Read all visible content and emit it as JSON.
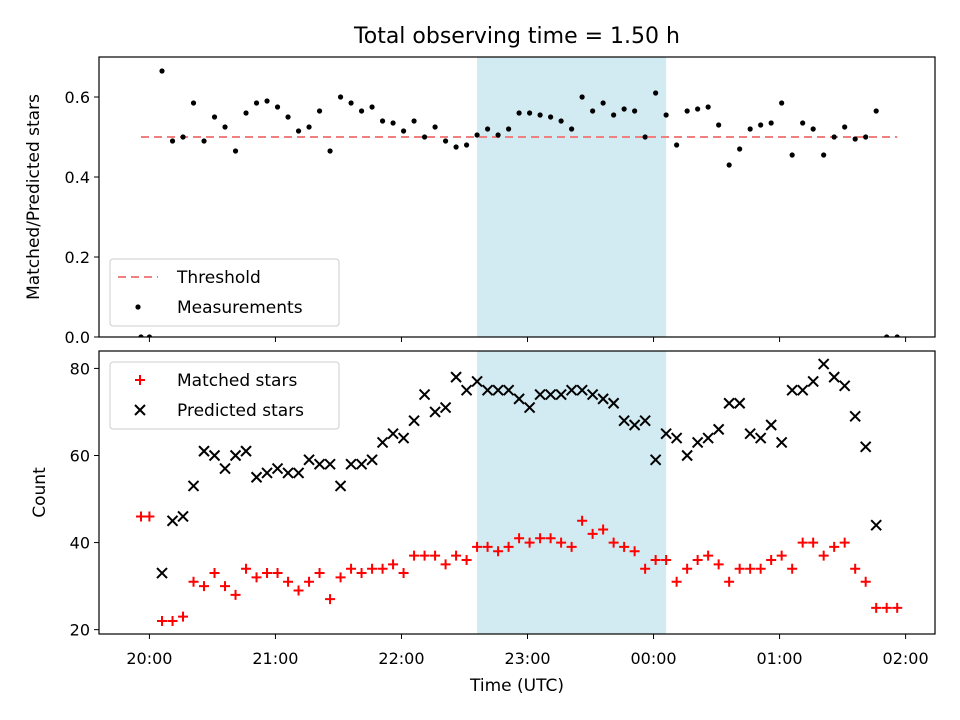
{
  "title": "Total observing time = 1.50 h",
  "xlabel": "Time (UTC)",
  "x_ticks": [
    "20:00",
    "21:00",
    "22:00",
    "23:00",
    "00:00",
    "01:00",
    "02:00"
  ],
  "colors": {
    "threshold": "#f08080",
    "measurement": "#000000",
    "matched": "#ff0000",
    "predicted": "#000000",
    "highlight": "#add8e6"
  },
  "chart_data": [
    {
      "type": "scatter",
      "ylabel": "Matched/Predicted stars",
      "xlim": [
        "19:36",
        "02:14"
      ],
      "ylim": [
        0,
        0.7
      ],
      "y_ticks": [
        "0.0",
        "0.2",
        "0.4",
        "0.6"
      ],
      "highlight_span": [
        "22:36",
        "00:06"
      ],
      "threshold": 0.5,
      "legend_position": "lower-left",
      "legend": {
        "threshold": "Threshold",
        "measurements": "Measurements"
      },
      "series": [
        {
          "name": "Measurements",
          "marker": "dot",
          "x": [
            "19:56",
            "20:00",
            "20:06",
            "20:11",
            "20:16",
            "20:21",
            "20:26",
            "20:31",
            "20:36",
            "20:41",
            "20:46",
            "20:51",
            "20:56",
            "21:01",
            "21:06",
            "21:11",
            "21:16",
            "21:21",
            "21:26",
            "21:31",
            "21:36",
            "21:41",
            "21:46",
            "21:51",
            "21:56",
            "22:01",
            "22:06",
            "22:11",
            "22:16",
            "22:21",
            "22:26",
            "22:31",
            "22:36",
            "22:41",
            "22:46",
            "22:51",
            "22:56",
            "23:01",
            "23:06",
            "23:11",
            "23:16",
            "23:21",
            "23:26",
            "23:31",
            "23:36",
            "23:41",
            "23:46",
            "23:51",
            "23:56",
            "00:01",
            "00:06",
            "00:11",
            "00:16",
            "00:21",
            "00:26",
            "00:31",
            "00:36",
            "00:41",
            "00:46",
            "00:51",
            "00:56",
            "01:01",
            "01:06",
            "01:11",
            "01:16",
            "01:21",
            "01:26",
            "01:31",
            "01:36",
            "01:41",
            "01:46",
            "01:51",
            "01:56"
          ],
          "y": [
            0.0,
            0.0,
            0.665,
            0.49,
            0.5,
            0.585,
            0.49,
            0.55,
            0.525,
            0.465,
            0.56,
            0.585,
            0.59,
            0.575,
            0.55,
            0.515,
            0.525,
            0.565,
            0.465,
            0.6,
            0.585,
            0.565,
            0.575,
            0.54,
            0.535,
            0.515,
            0.54,
            0.5,
            0.525,
            0.49,
            0.475,
            0.48,
            0.505,
            0.52,
            0.505,
            0.52,
            0.56,
            0.56,
            0.555,
            0.55,
            0.54,
            0.52,
            0.6,
            0.565,
            0.585,
            0.555,
            0.57,
            0.565,
            0.5,
            0.61,
            0.555,
            0.48,
            0.565,
            0.57,
            0.575,
            0.53,
            0.43,
            0.47,
            0.52,
            0.53,
            0.535,
            0.585,
            0.455,
            0.535,
            0.52,
            0.455,
            0.5,
            0.525,
            0.495,
            0.5,
            0.565,
            0.0,
            0.0
          ]
        }
      ]
    },
    {
      "type": "scatter",
      "ylabel": "Count",
      "xlim": [
        "19:36",
        "02:14"
      ],
      "ylim": [
        19,
        84
      ],
      "y_ticks": [
        "20",
        "40",
        "60",
        "80"
      ],
      "highlight_span": [
        "22:36",
        "00:06"
      ],
      "legend_position": "upper-left",
      "series": [
        {
          "name": "Matched stars",
          "marker": "plus",
          "x": [
            "19:56",
            "20:00",
            "20:06",
            "20:11",
            "20:16",
            "20:21",
            "20:26",
            "20:31",
            "20:36",
            "20:41",
            "20:46",
            "20:51",
            "20:56",
            "21:01",
            "21:06",
            "21:11",
            "21:16",
            "21:21",
            "21:26",
            "21:31",
            "21:36",
            "21:41",
            "21:46",
            "21:51",
            "21:56",
            "22:01",
            "22:06",
            "22:11",
            "22:16",
            "22:21",
            "22:26",
            "22:31",
            "22:36",
            "22:41",
            "22:46",
            "22:51",
            "22:56",
            "23:01",
            "23:06",
            "23:11",
            "23:16",
            "23:21",
            "23:26",
            "23:31",
            "23:36",
            "23:41",
            "23:46",
            "23:51",
            "23:56",
            "00:01",
            "00:06",
            "00:11",
            "00:16",
            "00:21",
            "00:26",
            "00:31",
            "00:36",
            "00:41",
            "00:46",
            "00:51",
            "00:56",
            "01:01",
            "01:06",
            "01:11",
            "01:16",
            "01:21",
            "01:26",
            "01:31",
            "01:36",
            "01:41",
            "01:46",
            "01:51",
            "01:56"
          ],
          "y": [
            46,
            46,
            22,
            22,
            23,
            31,
            30,
            33,
            30,
            28,
            34,
            32,
            33,
            33,
            31,
            29,
            31,
            33,
            27,
            32,
            34,
            33,
            34,
            34,
            35,
            33,
            37,
            37,
            37,
            35,
            37,
            36,
            39,
            39,
            38,
            39,
            41,
            40,
            41,
            41,
            40,
            39,
            45,
            42,
            43,
            40,
            39,
            38,
            34,
            36,
            36,
            31,
            34,
            36,
            37,
            35,
            31,
            34,
            34,
            34,
            36,
            37,
            34,
            40,
            40,
            37,
            39,
            40,
            34,
            31,
            25,
            25,
            25
          ]
        },
        {
          "name": "Predicted stars",
          "marker": "x",
          "x": [
            "20:06",
            "20:11",
            "20:16",
            "20:21",
            "20:26",
            "20:31",
            "20:36",
            "20:41",
            "20:46",
            "20:51",
            "20:56",
            "21:01",
            "21:06",
            "21:11",
            "21:16",
            "21:21",
            "21:26",
            "21:31",
            "21:36",
            "21:41",
            "21:46",
            "21:51",
            "21:56",
            "22:01",
            "22:06",
            "22:11",
            "22:16",
            "22:21",
            "22:26",
            "22:31",
            "22:36",
            "22:41",
            "22:46",
            "22:51",
            "22:56",
            "23:01",
            "23:06",
            "23:11",
            "23:16",
            "23:21",
            "23:26",
            "23:31",
            "23:36",
            "23:41",
            "23:46",
            "23:51",
            "23:56",
            "00:01",
            "00:06",
            "00:11",
            "00:16",
            "00:21",
            "00:26",
            "00:31",
            "00:36",
            "00:41",
            "00:46",
            "00:51",
            "00:56",
            "01:01",
            "01:06",
            "01:11",
            "01:16",
            "01:21",
            "01:26",
            "01:31",
            "01:36",
            "01:41",
            "01:46"
          ],
          "y": [
            33,
            45,
            46,
            53,
            61,
            60,
            57,
            60,
            61,
            55,
            56,
            57,
            56,
            56,
            59,
            58,
            58,
            53,
            58,
            58,
            59,
            63,
            65,
            64,
            68,
            74,
            70,
            71,
            78,
            75,
            77,
            75,
            75,
            75,
            73,
            71,
            74,
            74,
            74,
            75,
            75,
            74,
            73,
            72,
            68,
            67,
            68,
            59,
            65,
            64,
            60,
            63,
            64,
            66,
            72,
            72,
            65,
            64,
            67,
            63,
            75,
            75,
            77,
            81,
            78,
            76,
            69,
            62,
            44
          ]
        }
      ]
    }
  ]
}
